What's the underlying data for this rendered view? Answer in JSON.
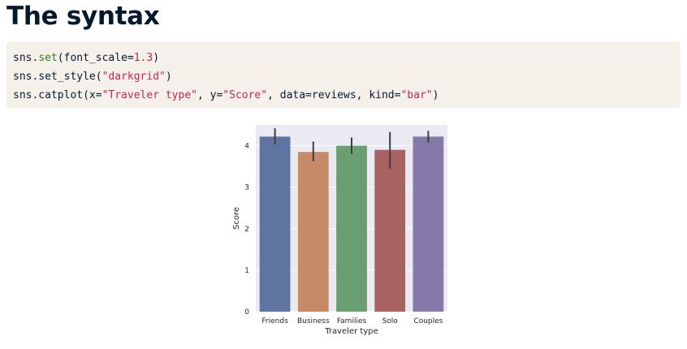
{
  "heading": "The syntax",
  "code": {
    "line1": {
      "obj": "sns.",
      "fn": "set",
      "open": "(font_scale=",
      "num": "1.3",
      "close": ")"
    },
    "line2": {
      "obj": "sns.set_style(",
      "str": "\"darkgrid\"",
      "close": ")"
    },
    "line3": {
      "obj": "sns.catplot(x=",
      "str1": "\"Traveler type\"",
      "mid1": ", y=",
      "str2": "\"Score\"",
      "mid2": ", data=reviews, kind=",
      "str3": "\"bar\"",
      "close": ")"
    }
  },
  "chart_data": {
    "type": "bar",
    "categories": [
      "Friends",
      "Business",
      "Families",
      "Solo",
      "Couples"
    ],
    "values": [
      4.22,
      3.85,
      4.0,
      3.9,
      4.22
    ],
    "error_low": [
      4.03,
      3.62,
      3.8,
      3.45,
      4.08
    ],
    "error_high": [
      4.42,
      4.1,
      4.2,
      4.33,
      4.36
    ],
    "colors": [
      "#5f74a0",
      "#c68a67",
      "#6b9e70",
      "#a86262",
      "#8479a8"
    ],
    "xlabel": "Traveler type",
    "ylabel": "Score",
    "ylim": [
      0,
      4.5
    ],
    "yticks": [
      0,
      1,
      2,
      3,
      4
    ],
    "grid": true,
    "style": "darkgrid",
    "background": "#eaeaf2"
  }
}
